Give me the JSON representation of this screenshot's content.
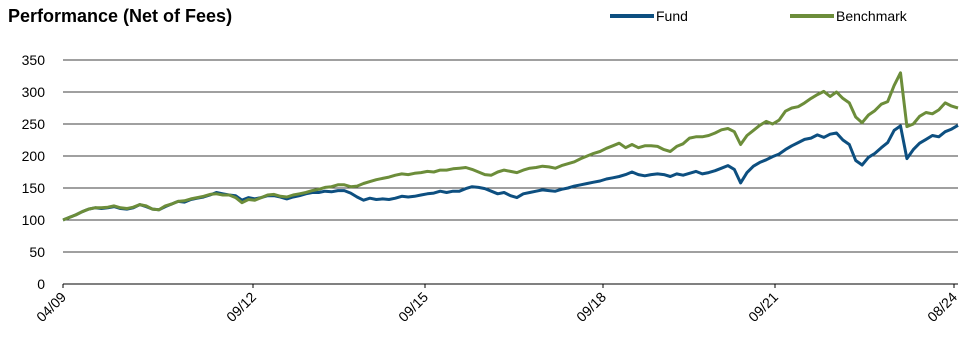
{
  "chart_data": {
    "type": "line",
    "title": "Performance (Net of Fees)",
    "xlabel": "",
    "ylabel": "",
    "ylim": [
      0,
      350
    ],
    "yticks": [
      0,
      50,
      100,
      150,
      200,
      250,
      300,
      350
    ],
    "xticks": [
      "04/09",
      "09/12",
      "09/15",
      "09/18",
      "09/21",
      "08/24"
    ],
    "grid": "horizontal",
    "legend_position": "top-right",
    "x": [
      0,
      3,
      6,
      9,
      12,
      15,
      18,
      21,
      24,
      27,
      30,
      33,
      36,
      39,
      41,
      42,
      45,
      48,
      51,
      54,
      57,
      60,
      63,
      66,
      69,
      72,
      75,
      78,
      81,
      84,
      87,
      90,
      93,
      96,
      99,
      102,
      105,
      108,
      111,
      114,
      117,
      120,
      123,
      126,
      129,
      132,
      135,
      138,
      141,
      144,
      147,
      150,
      153,
      156,
      159,
      162,
      165,
      168,
      171,
      174,
      177,
      180,
      183,
      186,
      189,
      192,
      195,
      198,
      201,
      204,
      207,
      210,
      213,
      216,
      219,
      222,
      225,
      228,
      231,
      234,
      237,
      240,
      243,
      246,
      249,
      252,
      255,
      258,
      261,
      264,
      267,
      270,
      273,
      276,
      279,
      282,
      285,
      288,
      291,
      294,
      297,
      300,
      303,
      306,
      309,
      312,
      315,
      318,
      321,
      324,
      327,
      330,
      333,
      336,
      339,
      342,
      345,
      348,
      351,
      354,
      357,
      360,
      363,
      366,
      369,
      372,
      375,
      378,
      381,
      384,
      387,
      390
    ],
    "series": [
      {
        "name": "Fund",
        "color": "#0d4f80",
        "values": [
          100,
          104,
          108,
          113,
          117,
          119,
          118,
          119,
          121,
          118,
          117,
          119,
          124,
          121,
          117,
          116,
          121,
          125,
          129,
          128,
          132,
          134,
          136,
          139,
          143,
          141,
          139,
          138,
          131,
          135,
          133,
          135,
          138,
          138,
          136,
          133,
          136,
          138,
          141,
          143,
          143,
          145,
          144,
          146,
          146,
          142,
          136,
          131,
          134,
          132,
          133,
          132,
          134,
          137,
          136,
          137,
          139,
          141,
          142,
          145,
          143,
          145,
          145,
          149,
          152,
          151,
          149,
          145,
          141,
          143,
          138,
          135,
          141,
          143,
          145,
          147,
          146,
          145,
          148,
          150,
          153,
          155,
          157,
          159,
          161,
          164,
          166,
          168,
          171,
          175,
          171,
          169,
          171,
          172,
          171,
          168,
          172,
          170,
          173,
          176,
          172,
          174,
          177,
          181,
          185,
          179,
          158,
          174,
          184,
          190,
          194,
          199,
          203,
          210,
          216,
          221,
          226,
          228,
          233,
          229,
          234,
          236,
          225,
          218,
          193,
          186,
          198,
          204,
          213,
          221,
          240,
          247
        ],
        "values_tail": [
          196,
          210,
          220,
          226,
          232,
          230,
          238,
          242,
          248
        ]
      },
      {
        "name": "Benchmark",
        "color": "#6c8d3a",
        "values": [
          100,
          104,
          108,
          113,
          117,
          119,
          119,
          120,
          122,
          119,
          118,
          120,
          124,
          122,
          117,
          116,
          122,
          125,
          129,
          130,
          133,
          135,
          137,
          140,
          141,
          139,
          139,
          135,
          127,
          132,
          131,
          135,
          139,
          140,
          137,
          136,
          139,
          141,
          143,
          146,
          148,
          151,
          152,
          155,
          155,
          152,
          153,
          157,
          160,
          163,
          165,
          167,
          170,
          172,
          171,
          173,
          174,
          176,
          175,
          178,
          178,
          180,
          181,
          182,
          179,
          175,
          171,
          170,
          175,
          178,
          176,
          174,
          178,
          181,
          182,
          184,
          183,
          181,
          185,
          188,
          191,
          196,
          200,
          204,
          207,
          212,
          216,
          220,
          213,
          218,
          213,
          216,
          216,
          215,
          210,
          207,
          215,
          219,
          228,
          230,
          230,
          232,
          236,
          241,
          243,
          238,
          218,
          232,
          240,
          248,
          254,
          250,
          256,
          270,
          275,
          277,
          283,
          290,
          296,
          301,
          293,
          300,
          290,
          283,
          261,
          252,
          264,
          271,
          281,
          285,
          310,
          330
        ],
        "values_tail": [
          246,
          250,
          262,
          268,
          266,
          272,
          283,
          278,
          275
        ]
      }
    ]
  }
}
